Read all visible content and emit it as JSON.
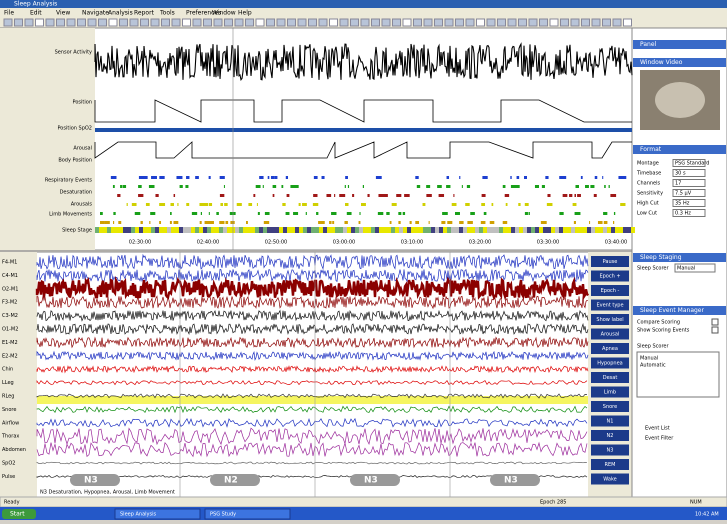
{
  "window": {
    "title": "Sleep Analysis",
    "menu": [
      "File",
      "Edit",
      "View",
      "Navigate",
      "Analysis",
      "Report",
      "Tools",
      "Preferences",
      "Window",
      "Help"
    ]
  },
  "overview": {
    "labels": [
      "Sensor Activity",
      "Position",
      "Position SpO2",
      "Arousal",
      "Body Position",
      "Respiratory Events",
      "Desaturation",
      "Arousals",
      "Limb Movements",
      "Sleep Stage"
    ],
    "times": [
      "02:30:00",
      "02:40:00",
      "02:50:00",
      "03:00:00",
      "03:10:00",
      "03:20:00",
      "03:30:00",
      "03:40:00"
    ]
  },
  "channels": [
    "F4-M1",
    "C4-M1",
    "O2-M1",
    "F3-M2",
    "C3-M2",
    "O1-M2",
    "E1-M2",
    "E2-M2",
    "Chin",
    "LLeg",
    "RLeg",
    "Snore",
    "Airflow",
    "Thorax",
    "Abdomen",
    "SpO2",
    "Pulse"
  ],
  "buttons": [
    "Pause",
    "Epoch +",
    "Epoch -",
    "Event type",
    "Show label",
    "Arousal",
    "Apnea",
    "Hypopnea",
    "Desat",
    "Limb",
    "Snore",
    "N1",
    "N2",
    "N3",
    "REM",
    "Wake"
  ],
  "stages": [
    "N3",
    "N2",
    "N3",
    "N3"
  ],
  "annotation": "N3 Desaturation, Hypopnea, Arousal, Limb Movement",
  "panel": {
    "title": "Panel",
    "video": "Window Video",
    "format": "Format",
    "fields": [
      [
        "Montage",
        "PSG Standard"
      ],
      [
        "Timebase",
        "30 s"
      ],
      [
        "Channels",
        "17"
      ],
      [
        "Sensitivity",
        "7.5 µV"
      ],
      [
        "High Cut",
        "35 Hz"
      ],
      [
        "Low Cut",
        "0.3 Hz"
      ]
    ],
    "staging": "Sleep Staging",
    "scorer_label": "Sleep Scorer",
    "scorer": "Manual",
    "events": "Sleep Event Manager",
    "options": [
      "Compare Scoring",
      "Show Scoring Events"
    ],
    "list_title": "Sleep Scorer",
    "list": [
      "Manual",
      "Automatic"
    ],
    "links": [
      "Event List",
      "Event Filter"
    ]
  },
  "status": {
    "left": "Ready",
    "mid": "Epoch 285",
    "right": "NUM"
  },
  "taskbar": {
    "start": "Start",
    "items": [
      "Sleep Analysis",
      "PSG Study"
    ],
    "clock": "10:42 AM"
  }
}
